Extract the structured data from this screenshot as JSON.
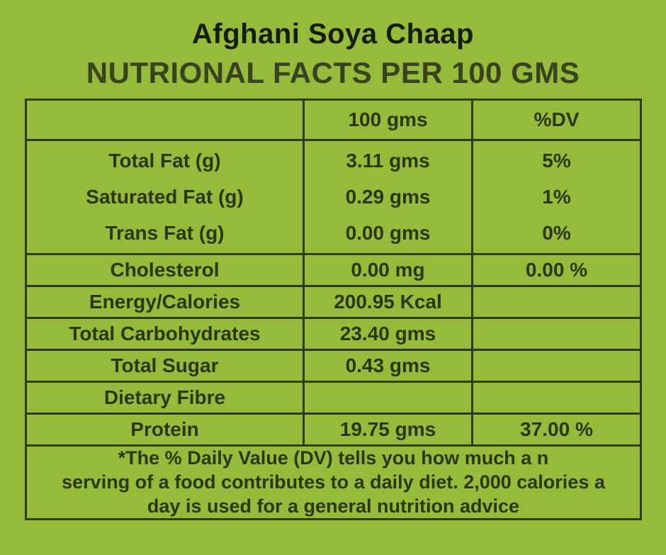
{
  "page": {
    "title": "Afghani Soya Chaap",
    "subtitle": "NUTRIONAL FACTS PER 100 GMS",
    "background_color": "#96bb3b",
    "line_color": "#2d3a14",
    "text_color": "#2b3612"
  },
  "table": {
    "columns": {
      "label": "",
      "amount": "100 gms",
      "dv": "%DV"
    },
    "fat_group": [
      {
        "label": "Total Fat (g)",
        "amount": "3.11 gms",
        "dv": "5%"
      },
      {
        "label": "Saturated Fat (g)",
        "amount": "0.29 gms",
        "dv": "1%"
      },
      {
        "label": "Trans Fat (g)",
        "amount": "0.00 gms",
        "dv": "0%"
      }
    ],
    "rows": [
      {
        "label": "Cholesterol",
        "amount": "0.00 mg",
        "dv": "0.00 %"
      },
      {
        "label": "Energy/Calories",
        "amount": "200.95 Kcal",
        "dv": ""
      },
      {
        "label": "Total Carbohydrates",
        "amount": "23.40 gms",
        "dv": ""
      },
      {
        "label": "Total Sugar",
        "amount": "0.43 gms",
        "dv": ""
      },
      {
        "label": "Dietary Fibre",
        "amount": "",
        "dv": ""
      },
      {
        "label": "Protein",
        "amount": "19.75 gms",
        "dv": "37.00 %"
      }
    ],
    "footnote_lines": [
      "*The % Daily Value (DV) tells you how much a n",
      "serving of a food contributes to a daily diet. 2,000 calories a",
      "day is used for a general nutrition advice"
    ]
  }
}
